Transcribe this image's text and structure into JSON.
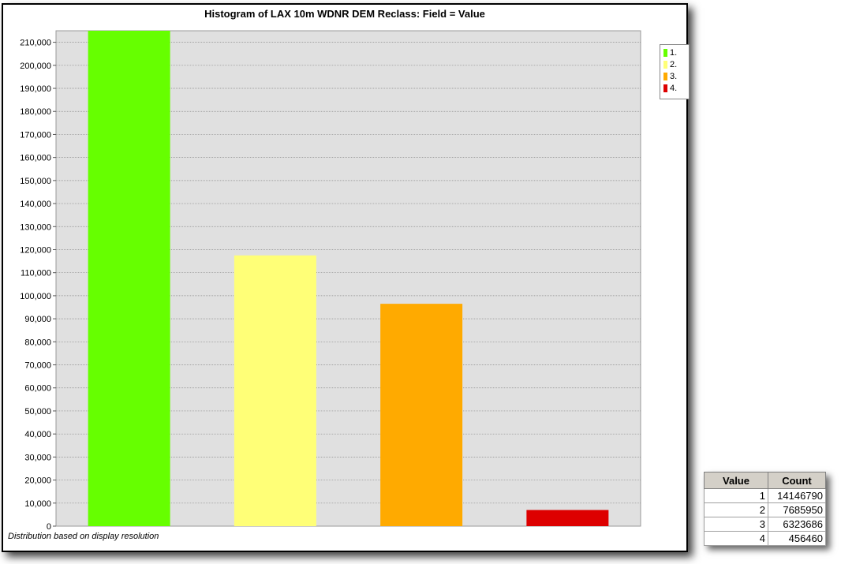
{
  "chart_data": {
    "type": "bar",
    "title": "Histogram of LAX 10m WDNR DEM Reclass: Field = Value",
    "footnote": "Distribution based on display resolution",
    "categories": [
      "1.",
      "2.",
      "3.",
      "4."
    ],
    "values": [
      215000,
      117500,
      96500,
      7000
    ],
    "colors": [
      "#66ff00",
      "#ffff77",
      "#ffaa00",
      "#dd0000"
    ],
    "ylim": [
      0,
      215000
    ],
    "yticks": [
      "0",
      "10,000",
      "20,000",
      "30,000",
      "40,000",
      "50,000",
      "60,000",
      "70,000",
      "80,000",
      "90,000",
      "100,000",
      "110,000",
      "120,000",
      "130,000",
      "140,000",
      "150,000",
      "160,000",
      "170,000",
      "180,000",
      "190,000",
      "200,000",
      "210,000"
    ],
    "grid": true,
    "legend_position": "right",
    "xlabel": "",
    "ylabel": ""
  },
  "table": {
    "headers": [
      "Value",
      "Count"
    ],
    "rows": [
      [
        "1",
        "14146790"
      ],
      [
        "2",
        "7685950"
      ],
      [
        "3",
        "6323686"
      ],
      [
        "4",
        "456460"
      ]
    ]
  }
}
